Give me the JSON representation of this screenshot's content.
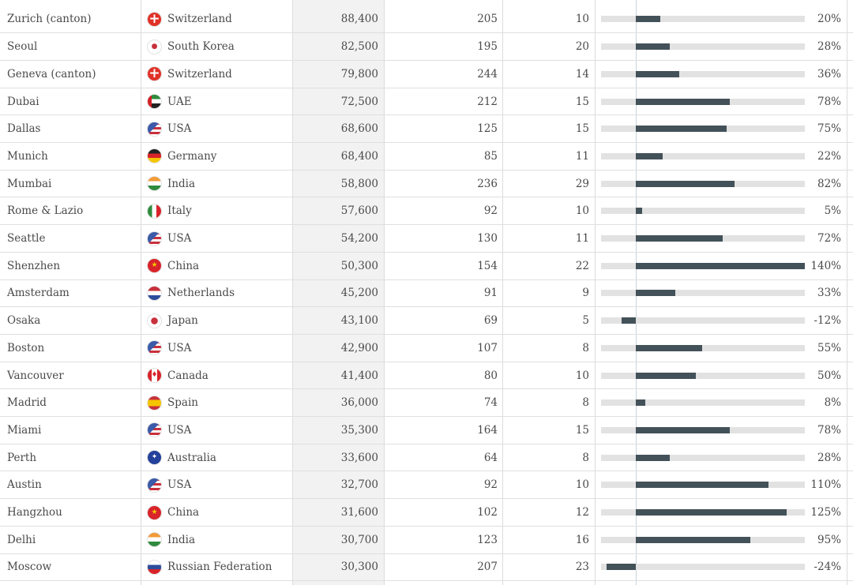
{
  "table": {
    "scale_max_pct": 140,
    "rows": [
      {
        "city": "Zurich (canton)",
        "country": "Switzerland",
        "flag_icon": "swiss-flag-icon",
        "value": "88,400",
        "col_a": "205",
        "col_b": "10",
        "change": "20%",
        "change_num": 20
      },
      {
        "city": "Seoul",
        "country": "South Korea",
        "flag_icon": "south-korea-flag-icon",
        "value": "82,500",
        "col_a": "195",
        "col_b": "20",
        "change": "28%",
        "change_num": 28
      },
      {
        "city": "Geneva (canton)",
        "country": "Switzerland",
        "flag_icon": "swiss-flag-icon",
        "value": "79,800",
        "col_a": "244",
        "col_b": "14",
        "change": "36%",
        "change_num": 36
      },
      {
        "city": "Dubai",
        "country": "UAE",
        "flag_icon": "uae-flag-icon",
        "value": "72,500",
        "col_a": "212",
        "col_b": "15",
        "change": "78%",
        "change_num": 78
      },
      {
        "city": "Dallas",
        "country": "USA",
        "flag_icon": "usa-flag-icon",
        "value": "68,600",
        "col_a": "125",
        "col_b": "15",
        "change": "75%",
        "change_num": 75
      },
      {
        "city": "Munich",
        "country": "Germany",
        "flag_icon": "germany-flag-icon",
        "value": "68,400",
        "col_a": "85",
        "col_b": "11",
        "change": "22%",
        "change_num": 22
      },
      {
        "city": "Mumbai",
        "country": "India",
        "flag_icon": "india-flag-icon",
        "value": "58,800",
        "col_a": "236",
        "col_b": "29",
        "change": "82%",
        "change_num": 82
      },
      {
        "city": "Rome & Lazio",
        "country": "Italy",
        "flag_icon": "italy-flag-icon",
        "value": "57,600",
        "col_a": "92",
        "col_b": "10",
        "change": "5%",
        "change_num": 5
      },
      {
        "city": "Seattle",
        "country": "USA",
        "flag_icon": "usa-flag-icon",
        "value": "54,200",
        "col_a": "130",
        "col_b": "11",
        "change": "72%",
        "change_num": 72
      },
      {
        "city": "Shenzhen",
        "country": "China",
        "flag_icon": "china-flag-icon",
        "value": "50,300",
        "col_a": "154",
        "col_b": "22",
        "change": "140%",
        "change_num": 140
      },
      {
        "city": "Amsterdam",
        "country": "Netherlands",
        "flag_icon": "netherlands-flag-icon",
        "value": "45,200",
        "col_a": "91",
        "col_b": "9",
        "change": "33%",
        "change_num": 33
      },
      {
        "city": "Osaka",
        "country": "Japan",
        "flag_icon": "japan-flag-icon",
        "value": "43,100",
        "col_a": "69",
        "col_b": "5",
        "change": "-12%",
        "change_num": -12
      },
      {
        "city": "Boston",
        "country": "USA",
        "flag_icon": "usa-flag-icon",
        "value": "42,900",
        "col_a": "107",
        "col_b": "8",
        "change": "55%",
        "change_num": 55
      },
      {
        "city": "Vancouver",
        "country": "Canada",
        "flag_icon": "canada-flag-icon",
        "value": "41,400",
        "col_a": "80",
        "col_b": "10",
        "change": "50%",
        "change_num": 50
      },
      {
        "city": "Madrid",
        "country": "Spain",
        "flag_icon": "spain-flag-icon",
        "value": "36,000",
        "col_a": "74",
        "col_b": "8",
        "change": "8%",
        "change_num": 8
      },
      {
        "city": "Miami",
        "country": "USA",
        "flag_icon": "usa-flag-icon",
        "value": "35,300",
        "col_a": "164",
        "col_b": "15",
        "change": "78%",
        "change_num": 78
      },
      {
        "city": "Perth",
        "country": "Australia",
        "flag_icon": "australia-flag-icon",
        "value": "33,600",
        "col_a": "64",
        "col_b": "8",
        "change": "28%",
        "change_num": 28
      },
      {
        "city": "Austin",
        "country": "USA",
        "flag_icon": "usa-flag-icon",
        "value": "32,700",
        "col_a": "92",
        "col_b": "10",
        "change": "110%",
        "change_num": 110
      },
      {
        "city": "Hangzhou",
        "country": "China",
        "flag_icon": "china-flag-icon",
        "value": "31,600",
        "col_a": "102",
        "col_b": "12",
        "change": "125%",
        "change_num": 125
      },
      {
        "city": "Delhi",
        "country": "India",
        "flag_icon": "india-flag-icon",
        "value": "30,700",
        "col_a": "123",
        "col_b": "16",
        "change": "95%",
        "change_num": 95
      },
      {
        "city": "Moscow",
        "country": "Russian Federation",
        "flag_icon": "russia-flag-icon",
        "value": "30,300",
        "col_a": "207",
        "col_b": "23",
        "change": "-24%",
        "change_num": -24
      }
    ]
  },
  "colors": {
    "bar_fill": "#435159",
    "bar_track": "#e2e2e2",
    "row_divider": "#dfdfdf",
    "shaded_column": "#f2f2f2",
    "text": "#4a4a4a"
  }
}
